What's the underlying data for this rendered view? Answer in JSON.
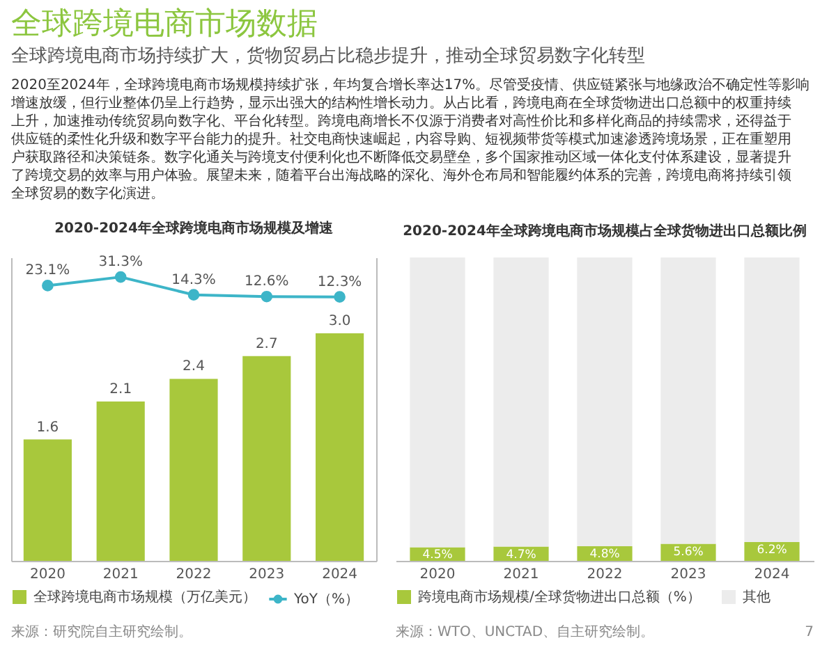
{
  "chart_data": [
    {
      "type": "other",
      "title": "全球跨境电商市场数据",
      "subtitle": "全球跨境电商市场持续扩大，货物贸易占比稳步提升，推动全球贸易数字化转型",
      "annotations": [
        "2020至2024年，全球跨境电商市场规模持续扩张，年均复合增长率达17%。尽管受疫情、供应链紧张与地缘政治不确定性等影响增速放缓，但行业整体仍呈上行趋势，显示出强大的结构性增长动力。从占比看，跨境电商在全球货物进出口总额中的权重持续上升，加速推动传统贸易向数字化、平台化转型。跨境电商增长不仅源于消费者对高性价比和多样化商品的持续需求，还得益于供应链的柔性化升级和数字平台能力的提升。社交电商快速崛起，内容导购、短视频带货等模式加速渗透跨境场景，正在重塑用户获取路径和决策链条。数字化通关与跨境支付便利化也不断降低交易壁垒，多个国家推动区域一体化支付体系建设，显著提升了跨境交易的效率与用户体验。展望未来，随着平台出海战略的深化、海外仓布局和智能履约体系的完善，跨境电商将持续引领全球贸易的数字化演进。"
      ]
    },
    {
      "type": "bar",
      "title": "2020-2024年全球跨境电商市场规模及增速",
      "categories": [
        "2020",
        "2021",
        "2022",
        "2023",
        "2024"
      ],
      "series": [
        {
          "name": "全球跨境电商市场规模（万亿美元）",
          "color": "#a8c83c",
          "values": [
            1.6,
            2.1,
            2.4,
            2.7,
            3.0
          ],
          "value_labels": [
            "1.6",
            "2.1",
            "2.4",
            "2.7",
            "3.0"
          ]
        },
        {
          "name": "YoY（%）",
          "type": "line",
          "axis": "y2",
          "color": "#3db5c8",
          "values": [
            23.1,
            31.3,
            14.3,
            12.6,
            12.3
          ],
          "value_labels": [
            "23.1%",
            "31.3%",
            "14.3%",
            "12.6%",
            "12.3%"
          ]
        }
      ],
      "ylim": [
        0,
        4.0
      ],
      "y2lim": [
        -240,
        50
      ],
      "tick_labels": "x",
      "marker": "circle",
      "legend": "bottom",
      "annotations": [
        "来源：研究院自主研究绘制。"
      ]
    },
    {
      "type": "bar",
      "title": "2020-2024年全球跨境电商市场规模占全球货物进出口总额比例",
      "categories": [
        "2020",
        "2021",
        "2022",
        "2023",
        "2024"
      ],
      "stacked": true,
      "series": [
        {
          "name": "跨境电商市场规模/全球货物进出口总额（%）",
          "color": "#a8c83c",
          "values": [
            4.5,
            4.7,
            4.8,
            5.6,
            6.2
          ],
          "value_labels": [
            "4.5%",
            "4.7%",
            "4.8%",
            "5.6%",
            "6.2%"
          ]
        },
        {
          "name": "其他",
          "color": "#ececec",
          "values": [
            95.5,
            95.3,
            95.2,
            94.4,
            93.8
          ]
        }
      ],
      "ylim": [
        0,
        100
      ],
      "tick_labels": "x",
      "legend": "bottom",
      "annotations": [
        "来源：WTO、UNCTAD、自主研究绘制。",
        "7"
      ]
    }
  ]
}
